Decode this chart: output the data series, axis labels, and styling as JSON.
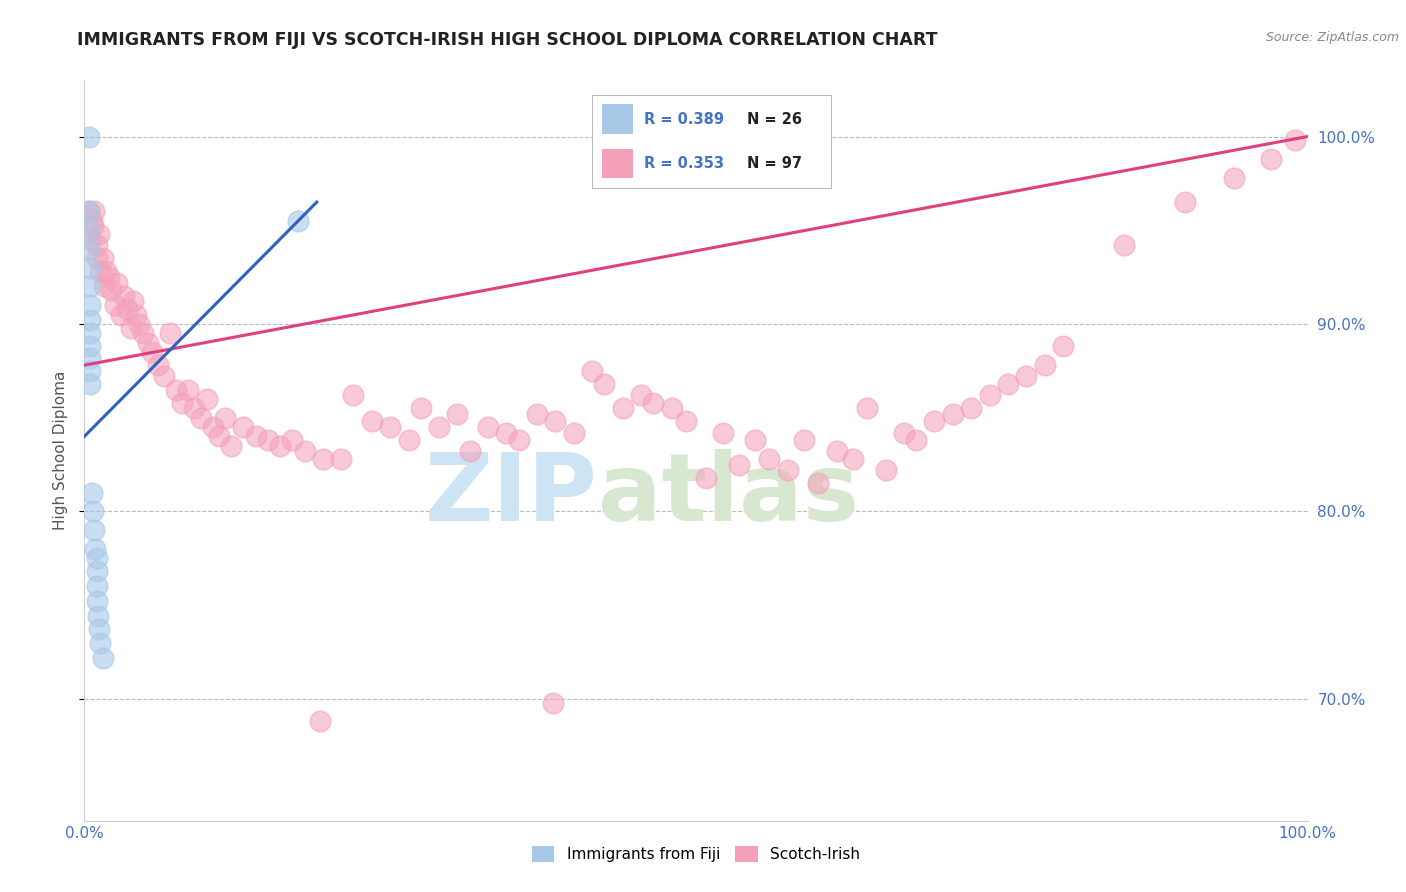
{
  "title": "IMMIGRANTS FROM FIJI VS SCOTCH-IRISH HIGH SCHOOL DIPLOMA CORRELATION CHART",
  "source": "Source: ZipAtlas.com",
  "ylabel": "High School Diploma",
  "xlim": [
    0.0,
    1.0
  ],
  "ylim": [
    0.635,
    1.03
  ],
  "yticks": [
    0.7,
    0.8,
    0.9,
    1.0
  ],
  "ytick_labels": [
    "70.0%",
    "80.0%",
    "90.0%",
    "100.0%"
  ],
  "fiji_color": "#a8c8e8",
  "scotch_color": "#f4a0b8",
  "fiji_line_color": "#3060c0",
  "scotch_line_color": "#e04080",
  "background_color": "#ffffff",
  "grid_color": "#bbbbbb",
  "title_color": "#222222",
  "title_fontsize": 12.5,
  "axis_label_color": "#555555",
  "tick_label_color": "#4472c4",
  "watermark_color": "#cce4f4",
  "legend_R_color": "#4472c4",
  "legend_N_color": "#222222",
  "fiji_points_x": [
    0.004,
    0.004,
    0.004,
    0.005,
    0.005,
    0.005,
    0.005,
    0.005,
    0.005,
    0.005,
    0.005,
    0.006,
    0.007,
    0.008,
    0.009,
    0.01,
    0.01,
    0.01,
    0.01,
    0.011,
    0.012,
    0.013,
    0.015,
    0.175,
    0.004,
    0.005
  ],
  "fiji_points_y": [
    0.96,
    0.95,
    0.94,
    0.93,
    0.92,
    0.91,
    0.902,
    0.895,
    0.888,
    0.882,
    0.875,
    0.81,
    0.8,
    0.79,
    0.78,
    0.775,
    0.768,
    0.76,
    0.752,
    0.744,
    0.737,
    0.73,
    0.722,
    0.955,
    1.0,
    0.868
  ],
  "scotch_points_x": [
    0.004,
    0.005,
    0.006,
    0.007,
    0.008,
    0.01,
    0.01,
    0.012,
    0.013,
    0.015,
    0.016,
    0.018,
    0.02,
    0.022,
    0.025,
    0.027,
    0.03,
    0.032,
    0.035,
    0.038,
    0.04,
    0.042,
    0.045,
    0.048,
    0.052,
    0.055,
    0.06,
    0.065,
    0.07,
    0.075,
    0.08,
    0.085,
    0.09,
    0.095,
    0.1,
    0.105,
    0.11,
    0.115,
    0.12,
    0.13,
    0.14,
    0.15,
    0.16,
    0.17,
    0.18,
    0.195,
    0.21,
    0.22,
    0.235,
    0.25,
    0.265,
    0.275,
    0.29,
    0.305,
    0.315,
    0.33,
    0.345,
    0.355,
    0.37,
    0.385,
    0.4,
    0.415,
    0.425,
    0.44,
    0.455,
    0.465,
    0.48,
    0.492,
    0.508,
    0.522,
    0.535,
    0.548,
    0.56,
    0.575,
    0.588,
    0.6,
    0.615,
    0.628,
    0.64,
    0.655,
    0.67,
    0.68,
    0.695,
    0.71,
    0.725,
    0.74,
    0.755,
    0.77,
    0.785,
    0.8,
    0.85,
    0.9,
    0.94,
    0.97,
    0.99,
    0.383,
    0.193
  ],
  "scotch_points_y": [
    0.96,
    0.945,
    0.955,
    0.952,
    0.96,
    0.942,
    0.935,
    0.948,
    0.928,
    0.935,
    0.92,
    0.928,
    0.925,
    0.918,
    0.91,
    0.922,
    0.905,
    0.915,
    0.908,
    0.898,
    0.912,
    0.905,
    0.9,
    0.895,
    0.89,
    0.885,
    0.878,
    0.872,
    0.895,
    0.865,
    0.858,
    0.865,
    0.855,
    0.85,
    0.86,
    0.845,
    0.84,
    0.85,
    0.835,
    0.845,
    0.84,
    0.838,
    0.835,
    0.838,
    0.832,
    0.828,
    0.828,
    0.862,
    0.848,
    0.845,
    0.838,
    0.855,
    0.845,
    0.852,
    0.832,
    0.845,
    0.842,
    0.838,
    0.852,
    0.848,
    0.842,
    0.875,
    0.868,
    0.855,
    0.862,
    0.858,
    0.855,
    0.848,
    0.818,
    0.842,
    0.825,
    0.838,
    0.828,
    0.822,
    0.838,
    0.815,
    0.832,
    0.828,
    0.855,
    0.822,
    0.842,
    0.838,
    0.848,
    0.852,
    0.855,
    0.862,
    0.868,
    0.872,
    0.878,
    0.888,
    0.942,
    0.965,
    0.978,
    0.988,
    0.998,
    0.698,
    0.688
  ],
  "scotch_line_start_x": 0.0,
  "scotch_line_start_y": 0.878,
  "scotch_line_end_x": 1.0,
  "scotch_line_end_y": 1.0,
  "fiji_line_start_x": 0.0,
  "fiji_line_start_y": 0.84,
  "fiji_line_end_x": 0.19,
  "fiji_line_end_y": 0.965
}
